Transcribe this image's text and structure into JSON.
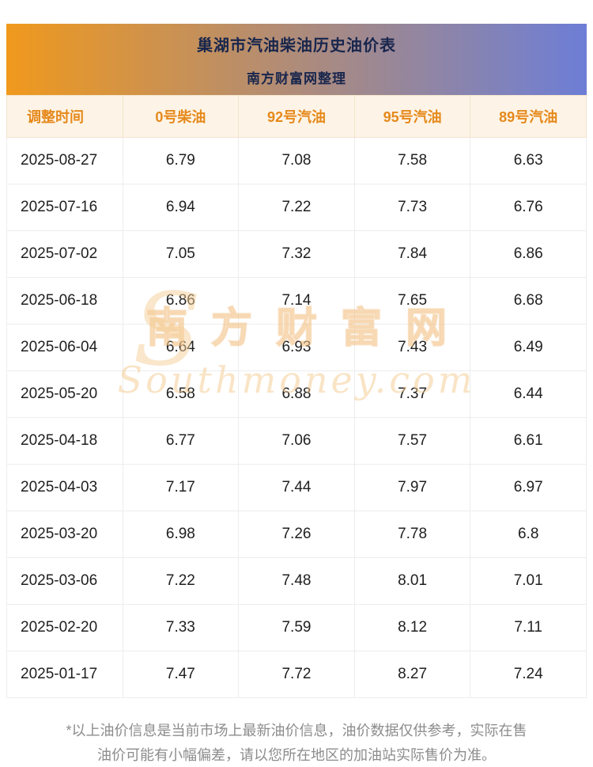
{
  "header": {
    "title": "巢湖市汽油柴油历史油价表",
    "subtitle": "南方财富网整理"
  },
  "chart_data": {
    "type": "table",
    "title": "巢湖市汽油柴油历史油价表",
    "columns": [
      "调整时间",
      "0号柴油",
      "92号汽油",
      "95号汽油",
      "89号汽油"
    ],
    "rows": [
      [
        "2025-08-27",
        "6.79",
        "7.08",
        "7.58",
        "6.63"
      ],
      [
        "2025-07-16",
        "6.94",
        "7.22",
        "7.73",
        "6.76"
      ],
      [
        "2025-07-02",
        "7.05",
        "7.32",
        "7.84",
        "6.86"
      ],
      [
        "2025-06-18",
        "6.86",
        "7.14",
        "7.65",
        "6.68"
      ],
      [
        "2025-06-04",
        "6.64",
        "6.93",
        "7.43",
        "6.49"
      ],
      [
        "2025-05-20",
        "6.58",
        "6.88",
        "7.37",
        "6.44"
      ],
      [
        "2025-04-18",
        "6.77",
        "7.06",
        "7.57",
        "6.61"
      ],
      [
        "2025-04-03",
        "7.17",
        "7.44",
        "7.97",
        "6.97"
      ],
      [
        "2025-03-20",
        "6.98",
        "7.26",
        "7.78",
        "6.8"
      ],
      [
        "2025-03-06",
        "7.22",
        "7.48",
        "8.01",
        "7.01"
      ],
      [
        "2025-02-20",
        "7.33",
        "7.59",
        "8.12",
        "7.11"
      ],
      [
        "2025-01-17",
        "7.47",
        "7.72",
        "8.27",
        "7.24"
      ]
    ]
  },
  "watermark": {
    "logo": "S",
    "cn": "南方财富网",
    "en": "Southmoney.com"
  },
  "footer": {
    "line1": "*以上油价信息是当前市场上最新油价信息，油价数据仅供参考，实际在售",
    "line2": "油价可能有小幅偏差，请以您所在地区的加油站实际售价为准。"
  },
  "colors": {
    "banner_left": "#f0991d",
    "banner_right": "#6d7ed6",
    "banner_text": "#18264d",
    "th_bg": "#fdf4e7",
    "th_text": "#e6891b",
    "row_text": "#202020",
    "border": "#ededed",
    "footer_text": "#8c8c8c"
  }
}
